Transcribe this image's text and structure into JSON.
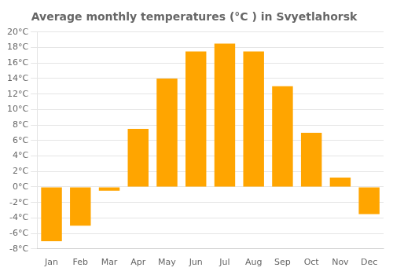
{
  "chart_data": {
    "type": "bar",
    "title": "Average monthly temperatures (°C ) in Svyetlahorsk",
    "categories": [
      "Jan",
      "Feb",
      "Mar",
      "Apr",
      "May",
      "Jun",
      "Jul",
      "Aug",
      "Sep",
      "Oct",
      "Nov",
      "Dec"
    ],
    "values": [
      -7.0,
      -5.0,
      -0.5,
      7.5,
      14.0,
      17.5,
      18.5,
      17.5,
      13.0,
      7.0,
      1.2,
      -3.5
    ],
    "color": "#FFA500",
    "ylim": [
      -8,
      20
    ],
    "yticks": [
      {
        "value": -8,
        "label": "-8°C"
      },
      {
        "value": -6,
        "label": "-6°C"
      },
      {
        "value": -4,
        "label": "-4°C"
      },
      {
        "value": -2,
        "label": "-2°C"
      },
      {
        "value": 0,
        "label": "0°C"
      },
      {
        "value": 2,
        "label": "2°C"
      },
      {
        "value": 4,
        "label": "4°C"
      },
      {
        "value": 6,
        "label": "6°C"
      },
      {
        "value": 8,
        "label": "8°C"
      },
      {
        "value": 10,
        "label": "10°C"
      },
      {
        "value": 12,
        "label": "12°C"
      },
      {
        "value": 14,
        "label": "14°C"
      },
      {
        "value": 16,
        "label": "16°C"
      },
      {
        "value": 18,
        "label": "18°C"
      },
      {
        "value": 20,
        "label": "20°C"
      }
    ],
    "grid": true
  }
}
